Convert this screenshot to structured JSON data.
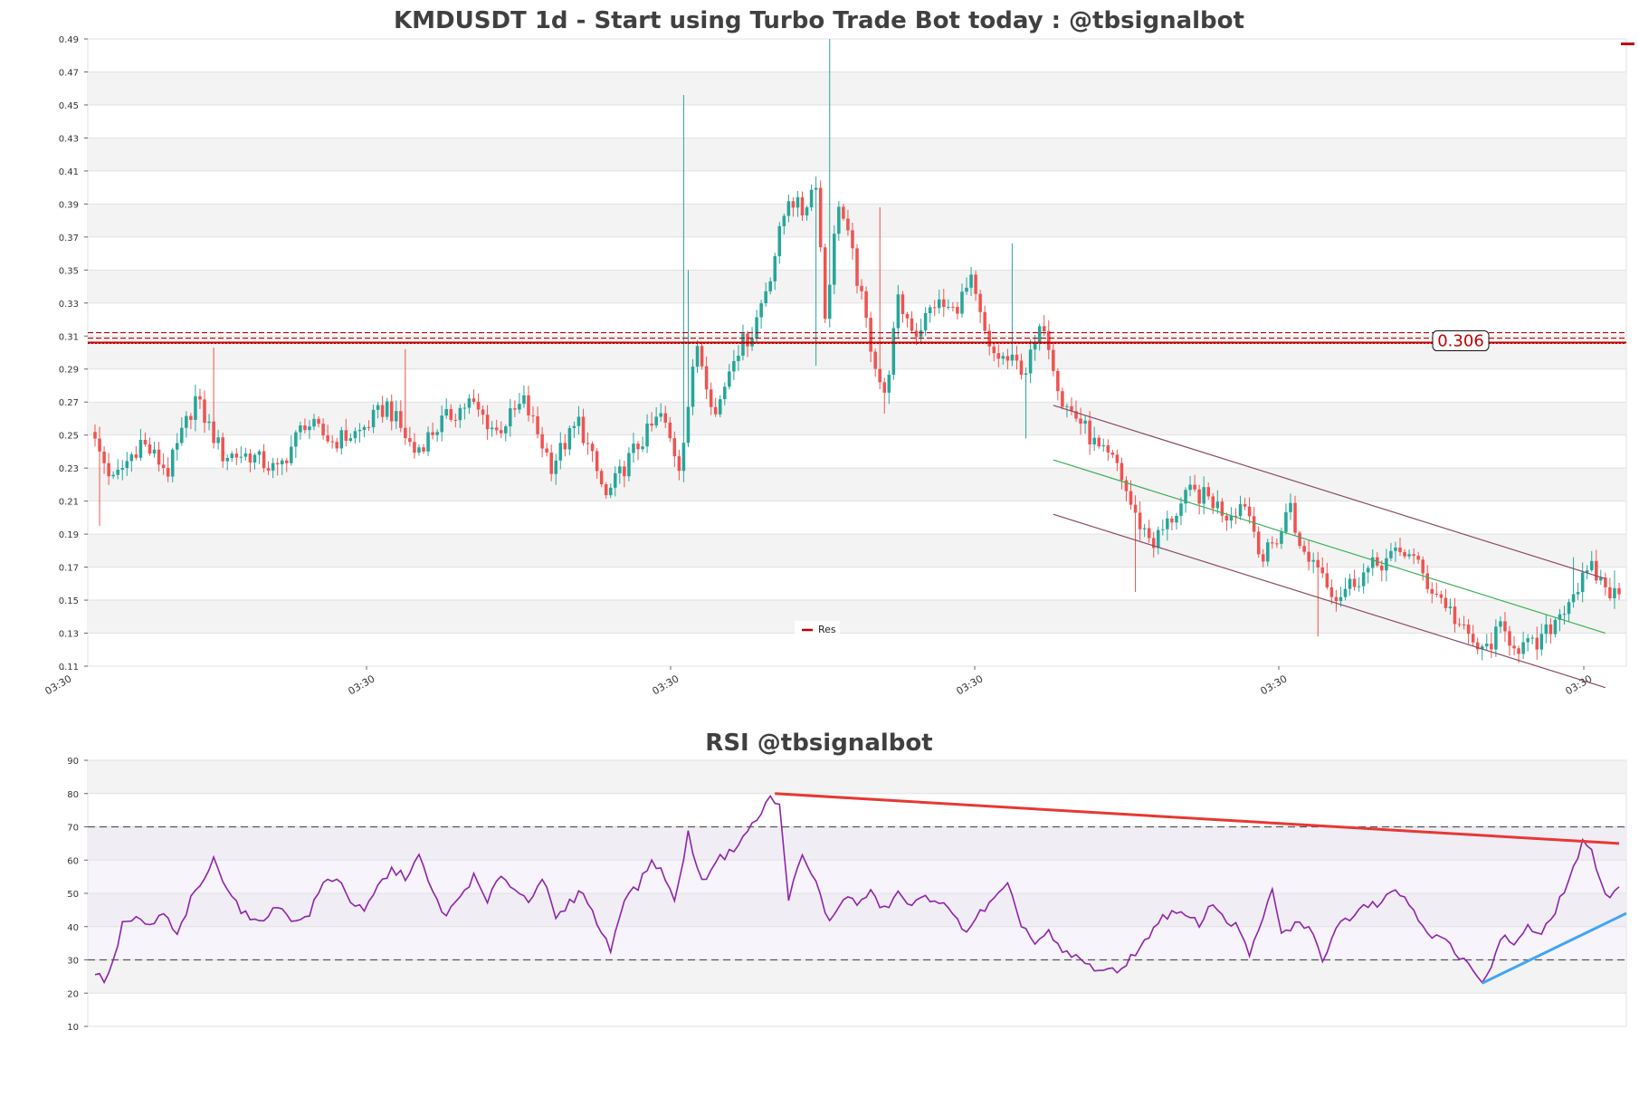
{
  "chart_data": [
    {
      "type": "candlestick",
      "title": "KMDUSDT 1d - Start using Turbo Trade Bot today : @tbsignalbot",
      "ylim": [
        0.11,
        0.49
      ],
      "y_ticks": [
        "0.11",
        "0.13",
        "0.15",
        "0.17",
        "0.19",
        "0.21",
        "0.23",
        "0.25",
        "0.27",
        "0.29",
        "0.31",
        "0.33",
        "0.35",
        "0.37",
        "0.39",
        "0.41",
        "0.43",
        "0.45",
        "0.47",
        "0.49"
      ],
      "x_ticks": [
        "03:30",
        "03:30",
        "03:30",
        "03:30",
        "03:30",
        "03:30"
      ],
      "grid": true,
      "colors": {
        "up": "#26a69a",
        "down": "#ef5350",
        "resistance": "#c00000",
        "channel": "#8a4a63",
        "midline": "#3cb05a"
      },
      "legend": {
        "position": "bottom-center",
        "entries": [
          "Res"
        ]
      },
      "resistance": {
        "value": 0.306,
        "label": "0.306"
      },
      "anchors": [
        {
          "i": 0,
          "p": 0.245
        },
        {
          "i": 4,
          "p": 0.222
        },
        {
          "i": 10,
          "p": 0.246
        },
        {
          "i": 16,
          "p": 0.228
        },
        {
          "i": 22,
          "p": 0.272
        },
        {
          "i": 28,
          "p": 0.238
        },
        {
          "i": 34,
          "p": 0.238
        },
        {
          "i": 40,
          "p": 0.228
        },
        {
          "i": 46,
          "p": 0.258
        },
        {
          "i": 52,
          "p": 0.246
        },
        {
          "i": 58,
          "p": 0.252
        },
        {
          "i": 64,
          "p": 0.268
        },
        {
          "i": 70,
          "p": 0.24
        },
        {
          "i": 76,
          "p": 0.258
        },
        {
          "i": 82,
          "p": 0.27
        },
        {
          "i": 88,
          "p": 0.252
        },
        {
          "i": 94,
          "p": 0.27
        },
        {
          "i": 100,
          "p": 0.232
        },
        {
          "i": 106,
          "p": 0.258
        },
        {
          "i": 112,
          "p": 0.212
        },
        {
          "i": 118,
          "p": 0.24
        },
        {
          "i": 124,
          "p": 0.262
        },
        {
          "i": 128,
          "p": 0.232
        },
        {
          "i": 132,
          "p": 0.305
        },
        {
          "i": 136,
          "p": 0.262
        },
        {
          "i": 140,
          "p": 0.3
        },
        {
          "i": 144,
          "p": 0.312
        },
        {
          "i": 148,
          "p": 0.348
        },
        {
          "i": 152,
          "p": 0.395
        },
        {
          "i": 155,
          "p": 0.385
        },
        {
          "i": 158,
          "p": 0.405
        },
        {
          "i": 160,
          "p": 0.322
        },
        {
          "i": 163,
          "p": 0.392
        },
        {
          "i": 166,
          "p": 0.358
        },
        {
          "i": 170,
          "p": 0.305
        },
        {
          "i": 173,
          "p": 0.272
        },
        {
          "i": 176,
          "p": 0.33
        },
        {
          "i": 180,
          "p": 0.312
        },
        {
          "i": 184,
          "p": 0.33
        },
        {
          "i": 188,
          "p": 0.325
        },
        {
          "i": 192,
          "p": 0.342
        },
        {
          "i": 196,
          "p": 0.3
        },
        {
          "i": 200,
          "p": 0.295
        },
        {
          "i": 204,
          "p": 0.29
        },
        {
          "i": 208,
          "p": 0.318
        },
        {
          "i": 212,
          "p": 0.27
        },
        {
          "i": 216,
          "p": 0.258
        },
        {
          "i": 220,
          "p": 0.24
        },
        {
          "i": 224,
          "p": 0.232
        },
        {
          "i": 228,
          "p": 0.2
        },
        {
          "i": 232,
          "p": 0.185
        },
        {
          "i": 236,
          "p": 0.2
        },
        {
          "i": 240,
          "p": 0.215
        },
        {
          "i": 244,
          "p": 0.212
        },
        {
          "i": 248,
          "p": 0.202
        },
        {
          "i": 252,
          "p": 0.21
        },
        {
          "i": 256,
          "p": 0.175
        },
        {
          "i": 260,
          "p": 0.192
        },
        {
          "i": 262,
          "p": 0.21
        },
        {
          "i": 264,
          "p": 0.18
        },
        {
          "i": 268,
          "p": 0.172
        },
        {
          "i": 272,
          "p": 0.152
        },
        {
          "i": 276,
          "p": 0.162
        },
        {
          "i": 280,
          "p": 0.17
        },
        {
          "i": 284,
          "p": 0.176
        },
        {
          "i": 288,
          "p": 0.18
        },
        {
          "i": 292,
          "p": 0.16
        },
        {
          "i": 296,
          "p": 0.148
        },
        {
          "i": 300,
          "p": 0.13
        },
        {
          "i": 304,
          "p": 0.118
        },
        {
          "i": 308,
          "p": 0.132
        },
        {
          "i": 312,
          "p": 0.122
        },
        {
          "i": 316,
          "p": 0.122
        },
        {
          "i": 320,
          "p": 0.138
        },
        {
          "i": 324,
          "p": 0.155
        },
        {
          "i": 328,
          "p": 0.168
        },
        {
          "i": 332,
          "p": 0.155
        },
        {
          "i": 334,
          "p": 0.152
        }
      ],
      "spikes": [
        {
          "i": 1,
          "high": 0.255,
          "low": 0.195
        },
        {
          "i": 26,
          "high": 0.303
        },
        {
          "i": 68,
          "high": 0.302
        },
        {
          "i": 129,
          "high": 0.456
        },
        {
          "i": 130,
          "high": 0.35
        },
        {
          "i": 161,
          "high": 0.49
        },
        {
          "i": 158,
          "low": 0.292
        },
        {
          "i": 172,
          "high": 0.388
        },
        {
          "i": 173,
          "low": 0.263
        },
        {
          "i": 201,
          "high": 0.366
        },
        {
          "i": 204,
          "low": 0.248
        },
        {
          "i": 228,
          "low": 0.155
        },
        {
          "i": 268,
          "low": 0.128
        },
        {
          "i": 333,
          "high": 0.168
        },
        {
          "i": 324,
          "high": 0.176
        }
      ],
      "channel": {
        "upper": [
          [
            210,
            0.268
          ],
          [
            331,
            0.163
          ]
        ],
        "lower": [
          [
            210,
            0.202
          ],
          [
            331,
            0.097
          ]
        ],
        "mid": [
          [
            210,
            0.235
          ],
          [
            331,
            0.13
          ]
        ]
      }
    },
    {
      "type": "line",
      "title": "RSI @tbsignalbot",
      "ylim": [
        10,
        90
      ],
      "y_ticks": [
        "10",
        "20",
        "30",
        "40",
        "50",
        "60",
        "70",
        "80",
        "90"
      ],
      "levels": [
        30,
        70
      ],
      "colors": {
        "line": "#8e24aa",
        "downtrend": "#e53935",
        "uptrend": "#42a5f5",
        "band": "#ede7f6"
      },
      "anchors": [
        {
          "i": 0,
          "v": 26
        },
        {
          "i": 2,
          "v": 24
        },
        {
          "i": 4,
          "v": 29
        },
        {
          "i": 6,
          "v": 41
        },
        {
          "i": 9,
          "v": 42
        },
        {
          "i": 12,
          "v": 40
        },
        {
          "i": 15,
          "v": 44
        },
        {
          "i": 18,
          "v": 37
        },
        {
          "i": 21,
          "v": 48
        },
        {
          "i": 23,
          "v": 52
        },
        {
          "i": 26,
          "v": 60
        },
        {
          "i": 29,
          "v": 52
        },
        {
          "i": 32,
          "v": 45
        },
        {
          "i": 35,
          "v": 41
        },
        {
          "i": 38,
          "v": 44
        },
        {
          "i": 41,
          "v": 46
        },
        {
          "i": 44,
          "v": 41
        },
        {
          "i": 47,
          "v": 44
        },
        {
          "i": 50,
          "v": 53
        },
        {
          "i": 53,
          "v": 55
        },
        {
          "i": 56,
          "v": 48
        },
        {
          "i": 59,
          "v": 44
        },
        {
          "i": 62,
          "v": 52
        },
        {
          "i": 65,
          "v": 57
        },
        {
          "i": 68,
          "v": 55
        },
        {
          "i": 71,
          "v": 61
        },
        {
          "i": 74,
          "v": 50
        },
        {
          "i": 77,
          "v": 43
        },
        {
          "i": 80,
          "v": 49
        },
        {
          "i": 83,
          "v": 55
        },
        {
          "i": 86,
          "v": 47
        },
        {
          "i": 89,
          "v": 56
        },
        {
          "i": 92,
          "v": 51
        },
        {
          "i": 95,
          "v": 48
        },
        {
          "i": 98,
          "v": 55
        },
        {
          "i": 101,
          "v": 42
        },
        {
          "i": 104,
          "v": 47
        },
        {
          "i": 107,
          "v": 51
        },
        {
          "i": 110,
          "v": 41
        },
        {
          "i": 113,
          "v": 33
        },
        {
          "i": 116,
          "v": 49
        },
        {
          "i": 119,
          "v": 52
        },
        {
          "i": 122,
          "v": 60
        },
        {
          "i": 125,
          "v": 55
        },
        {
          "i": 127,
          "v": 47
        },
        {
          "i": 130,
          "v": 68
        },
        {
          "i": 133,
          "v": 53
        },
        {
          "i": 136,
          "v": 60
        },
        {
          "i": 139,
          "v": 62
        },
        {
          "i": 142,
          "v": 67
        },
        {
          "i": 145,
          "v": 72
        },
        {
          "i": 148,
          "v": 79
        },
        {
          "i": 150,
          "v": 76
        },
        {
          "i": 152,
          "v": 49
        },
        {
          "i": 155,
          "v": 61
        },
        {
          "i": 158,
          "v": 53
        },
        {
          "i": 161,
          "v": 41
        },
        {
          "i": 164,
          "v": 49
        },
        {
          "i": 167,
          "v": 47
        },
        {
          "i": 170,
          "v": 50
        },
        {
          "i": 173,
          "v": 45
        },
        {
          "i": 176,
          "v": 50
        },
        {
          "i": 179,
          "v": 46
        },
        {
          "i": 182,
          "v": 49
        },
        {
          "i": 185,
          "v": 48
        },
        {
          "i": 188,
          "v": 43
        },
        {
          "i": 191,
          "v": 39
        },
        {
          "i": 194,
          "v": 44
        },
        {
          "i": 197,
          "v": 48
        },
        {
          "i": 200,
          "v": 52
        },
        {
          "i": 203,
          "v": 41
        },
        {
          "i": 206,
          "v": 35
        },
        {
          "i": 209,
          "v": 38
        },
        {
          "i": 212,
          "v": 32
        },
        {
          "i": 215,
          "v": 31
        },
        {
          "i": 218,
          "v": 28
        },
        {
          "i": 221,
          "v": 27
        },
        {
          "i": 224,
          "v": 26
        },
        {
          "i": 227,
          "v": 31
        },
        {
          "i": 230,
          "v": 35
        },
        {
          "i": 233,
          "v": 42
        },
        {
          "i": 236,
          "v": 44
        },
        {
          "i": 239,
          "v": 43
        },
        {
          "i": 242,
          "v": 41
        },
        {
          "i": 245,
          "v": 47
        },
        {
          "i": 248,
          "v": 42
        },
        {
          "i": 251,
          "v": 39
        },
        {
          "i": 253,
          "v": 31
        },
        {
          "i": 256,
          "v": 42
        },
        {
          "i": 258,
          "v": 52
        },
        {
          "i": 260,
          "v": 37
        },
        {
          "i": 263,
          "v": 41
        },
        {
          "i": 266,
          "v": 40
        },
        {
          "i": 269,
          "v": 30
        },
        {
          "i": 272,
          "v": 40
        },
        {
          "i": 275,
          "v": 43
        },
        {
          "i": 278,
          "v": 47
        },
        {
          "i": 281,
          "v": 47
        },
        {
          "i": 284,
          "v": 51
        },
        {
          "i": 287,
          "v": 49
        },
        {
          "i": 290,
          "v": 43
        },
        {
          "i": 293,
          "v": 37
        },
        {
          "i": 296,
          "v": 36
        },
        {
          "i": 299,
          "v": 30
        },
        {
          "i": 302,
          "v": 28
        },
        {
          "i": 304,
          "v": 24
        },
        {
          "i": 306,
          "v": 27
        },
        {
          "i": 308,
          "v": 37
        },
        {
          "i": 311,
          "v": 35
        },
        {
          "i": 314,
          "v": 40
        },
        {
          "i": 317,
          "v": 37
        },
        {
          "i": 320,
          "v": 45
        },
        {
          "i": 323,
          "v": 54
        },
        {
          "i": 326,
          "v": 65
        },
        {
          "i": 328,
          "v": 62
        },
        {
          "i": 330,
          "v": 54
        },
        {
          "i": 332,
          "v": 48
        },
        {
          "i": 334,
          "v": 53
        }
      ],
      "trend_down": [
        [
          149,
          80
        ],
        [
          334,
          65
        ]
      ],
      "trend_up": [
        [
          304,
          23
        ],
        [
          334,
          44
        ]
      ]
    }
  ]
}
